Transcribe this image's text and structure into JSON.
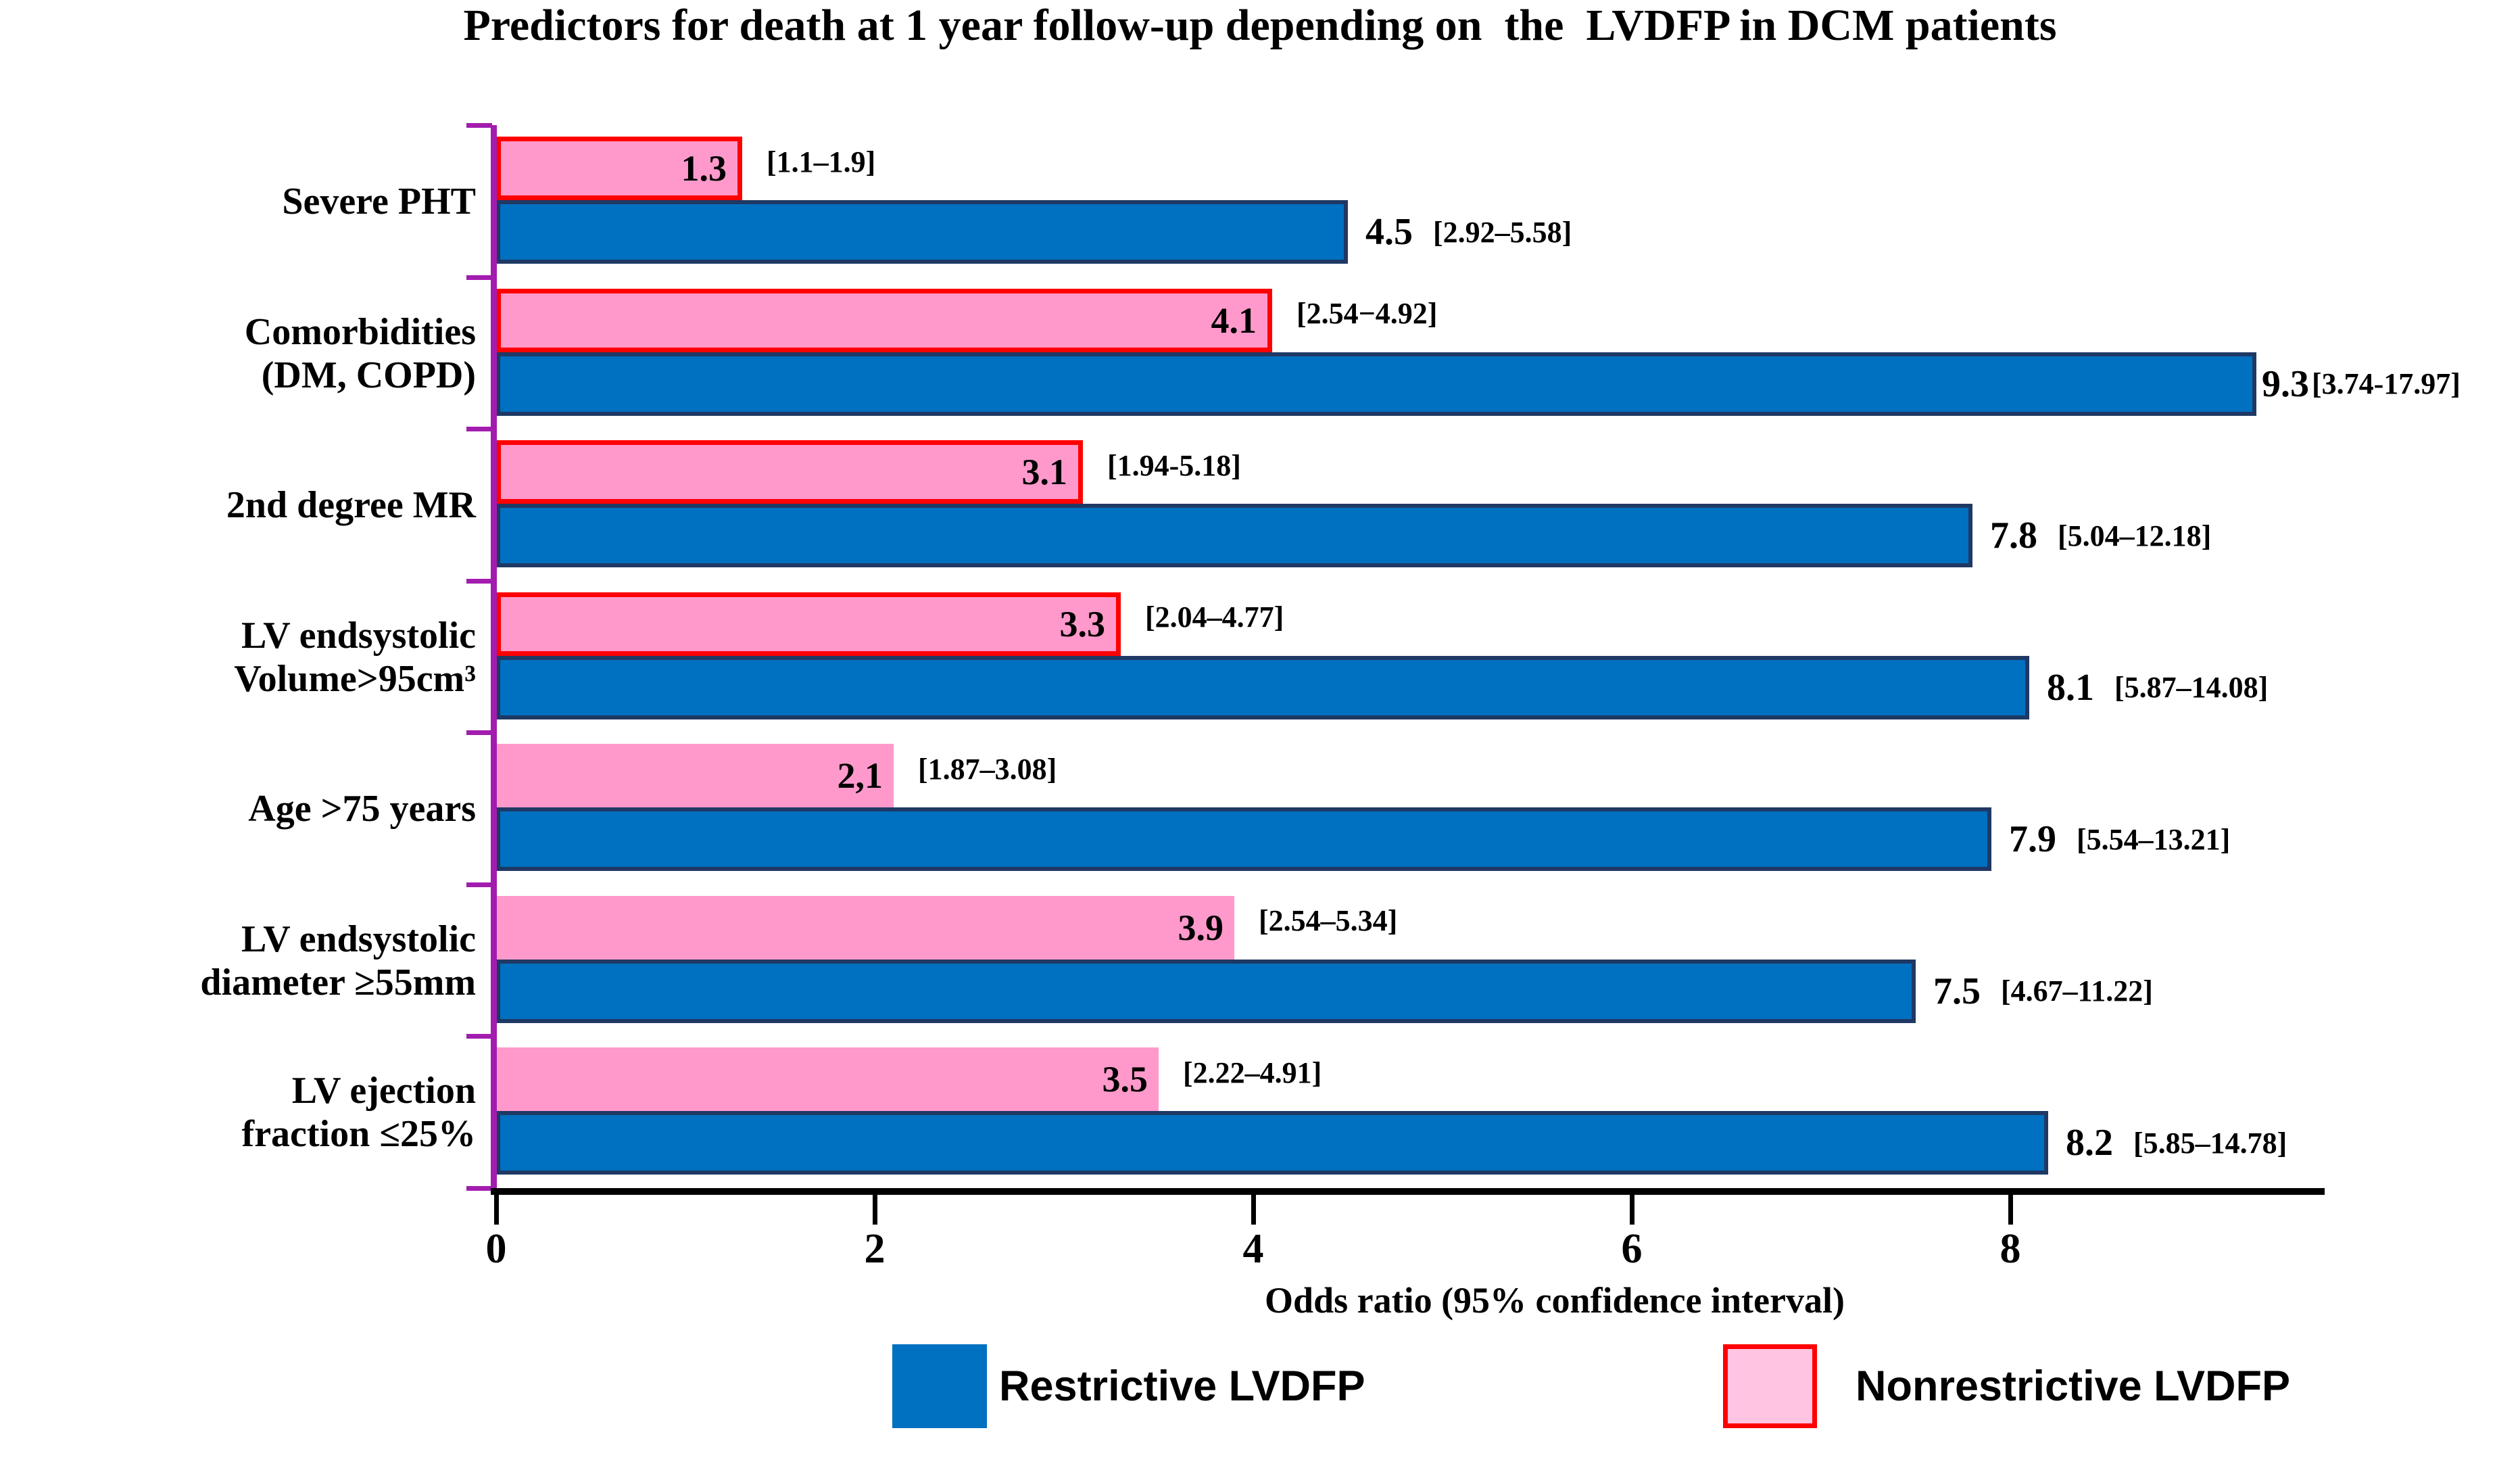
{
  "title": "Predictors for death at 1 year follow-up depending on  the  LVDFP in DCM patients",
  "chart_data": {
    "type": "bar",
    "orientation": "horizontal",
    "title": "Predictors for death at 1 year follow-up depending on  the  LVDFP in DCM patients",
    "xlabel": "Odds ratio (95% confidence interval)",
    "x_ticks": [
      "0",
      "2",
      "4",
      "6",
      "8"
    ],
    "x_tick_values": [
      0,
      2,
      4,
      6,
      8
    ],
    "xlim": [
      0,
      9.66
    ],
    "grid": false,
    "legend_position": "bottom",
    "series": [
      {
        "name": "Restrictive LVDFP",
        "color": "#0070C0",
        "border_color": "#1F3864",
        "values": [
          4.5,
          9.3,
          7.8,
          8.1,
          7.9,
          7.5,
          8.2
        ]
      },
      {
        "name": "Nonrestrictive LVDFP",
        "color": "#FF99CB",
        "border_color": "#FF0000",
        "values": [
          1.3,
          4.1,
          3.1,
          3.3,
          2.1,
          3.9,
          3.5
        ]
      }
    ],
    "categories": [
      {
        "label_lines": [
          "Severe PHT"
        ],
        "nonrestrictive": {
          "value": 1.3,
          "label": "1.3",
          "ci": "[1.1–1.9]",
          "outlined": true
        },
        "restrictive": {
          "value": 4.5,
          "label": "4.5",
          "ci": "[2.92–5.58]"
        }
      },
      {
        "label_lines": [
          "Comorbidities",
          "(DM, COPD)"
        ],
        "nonrestrictive": {
          "value": 4.1,
          "label": "4.1",
          "ci": "[2.54−4.92]",
          "outlined": true
        },
        "restrictive": {
          "value": 9.3,
          "label": "9.3",
          "ci": "[3.74-17.97]"
        }
      },
      {
        "label_lines": [
          "2nd degree MR"
        ],
        "nonrestrictive": {
          "value": 3.1,
          "label": "3.1",
          "ci": "[1.94-5.18]",
          "outlined": true
        },
        "restrictive": {
          "value": 7.8,
          "label": "7.8",
          "ci": "[5.04–12.18]"
        }
      },
      {
        "label_lines": [
          "LV endsystolic",
          "Volume>95cm³"
        ],
        "nonrestrictive": {
          "value": 3.3,
          "label": "3.3",
          "ci": "[2.04–4.77]",
          "outlined": true
        },
        "restrictive": {
          "value": 8.1,
          "label": "8.1",
          "ci": "[5.87–14.08]"
        }
      },
      {
        "label_lines": [
          "Age >75 years"
        ],
        "nonrestrictive": {
          "value": 2.1,
          "label": "2,1",
          "ci": "[1.87–3.08]",
          "outlined": false
        },
        "restrictive": {
          "value": 7.9,
          "label": "7.9",
          "ci": "[5.54–13.21]"
        }
      },
      {
        "label_lines": [
          "LV endsystolic",
          "diameter ≥55mm"
        ],
        "nonrestrictive": {
          "value": 3.9,
          "label": "3.9",
          "ci": "[2.54–5.34]",
          "outlined": false
        },
        "restrictive": {
          "value": 7.5,
          "label": "7.5",
          "ci": "[4.67–11.22]"
        }
      },
      {
        "label_lines": [
          "LV ejection",
          "fraction ≤25%"
        ],
        "nonrestrictive": {
          "value": 3.5,
          "label": "3.5",
          "ci": "[2.22–4.91]",
          "outlined": false
        },
        "restrictive": {
          "value": 8.2,
          "label": "8.2",
          "ci": "[5.85–14.78]"
        }
      }
    ],
    "colors": {
      "restrictive_fill": "#0070C0",
      "restrictive_border": "#1F3864",
      "nonrestrictive_fill": "#FF99CB",
      "nonrestrictive_border": "#FF0000",
      "legend_nonrestrictive_fill": "#FFC4E1",
      "y_axis": "#A21CAF",
      "x_axis": "#000000",
      "background": "#FFFFFF"
    }
  }
}
